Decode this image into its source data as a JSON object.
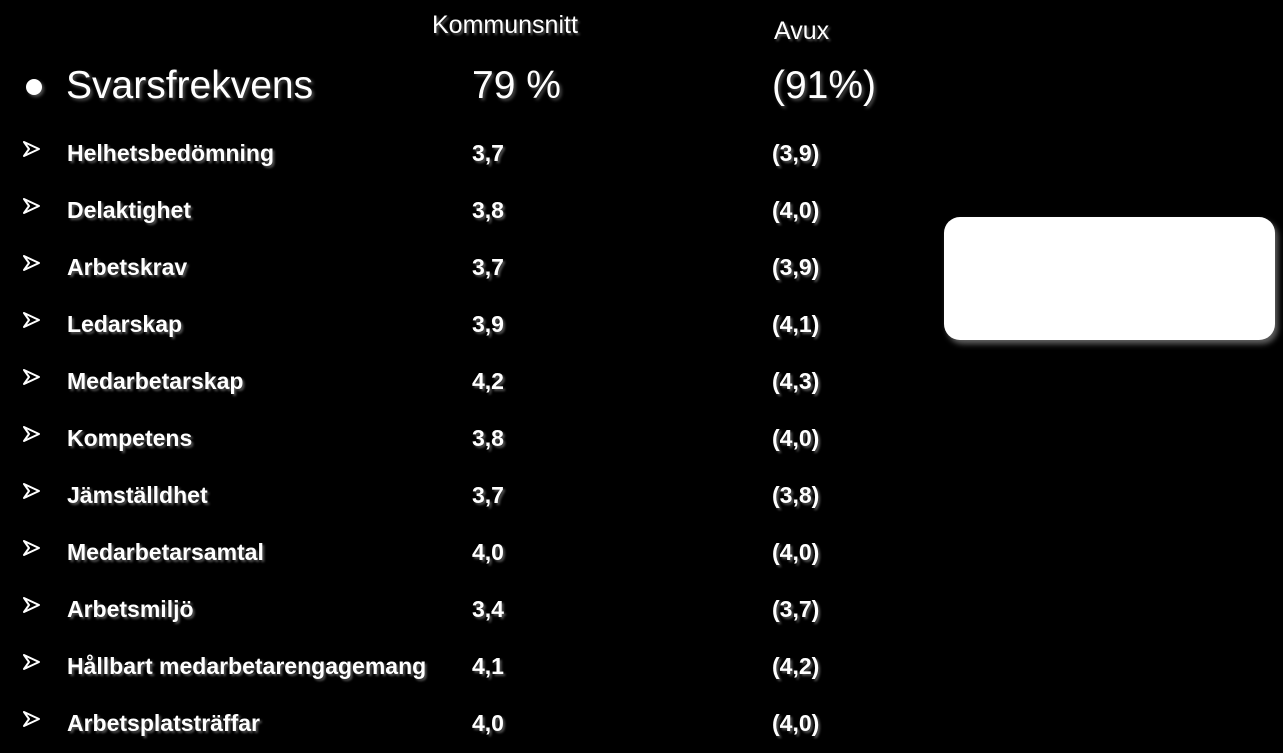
{
  "columns": {
    "kommun_header": "Kommunsnitt",
    "avux_header": "Avux"
  },
  "summary": {
    "label": "Svarsfrekvens",
    "kommun": "79 %",
    "avux": "(91%)"
  },
  "rows": [
    {
      "label": "Helhetsbedömning",
      "kommun": "3,7",
      "avux": "(3,9)"
    },
    {
      "label": "Delaktighet",
      "kommun": "3,8",
      "avux": "(4,0)"
    },
    {
      "label": "Arbetskrav",
      "kommun": "3,7",
      "avux": "(3,9)"
    },
    {
      "label": "Ledarskap",
      "kommun": "3,9",
      "avux": "(4,1)"
    },
    {
      "label": "Medarbetarskap",
      "kommun": "4,2",
      "avux": "(4,3)"
    },
    {
      "label": "Kompetens",
      "kommun": "3,8",
      "avux": "(4,0)"
    },
    {
      "label": "Jämställdhet",
      "kommun": "3,7",
      "avux": "(3,8)"
    },
    {
      "label": "Medarbetarsamtal",
      "kommun": "4,0",
      "avux": "(4,0)"
    },
    {
      "label": "Arbetsmiljö",
      "kommun": "3,4",
      "avux": "(3,7)"
    },
    {
      "label": "Hållbart medarbetarengagemang",
      "kommun": "4,1",
      "avux": "(4,2)"
    },
    {
      "label": "Arbetsplatsträffar",
      "kommun": "4,0",
      "avux": "(4,0)"
    }
  ],
  "icons": {
    "summary_bullet": "bullet-dot-icon",
    "row_bullet": "arrow-bullet-icon"
  },
  "colors": {
    "background": "#000000",
    "text": "#ffffff",
    "box": "#ffffff"
  }
}
